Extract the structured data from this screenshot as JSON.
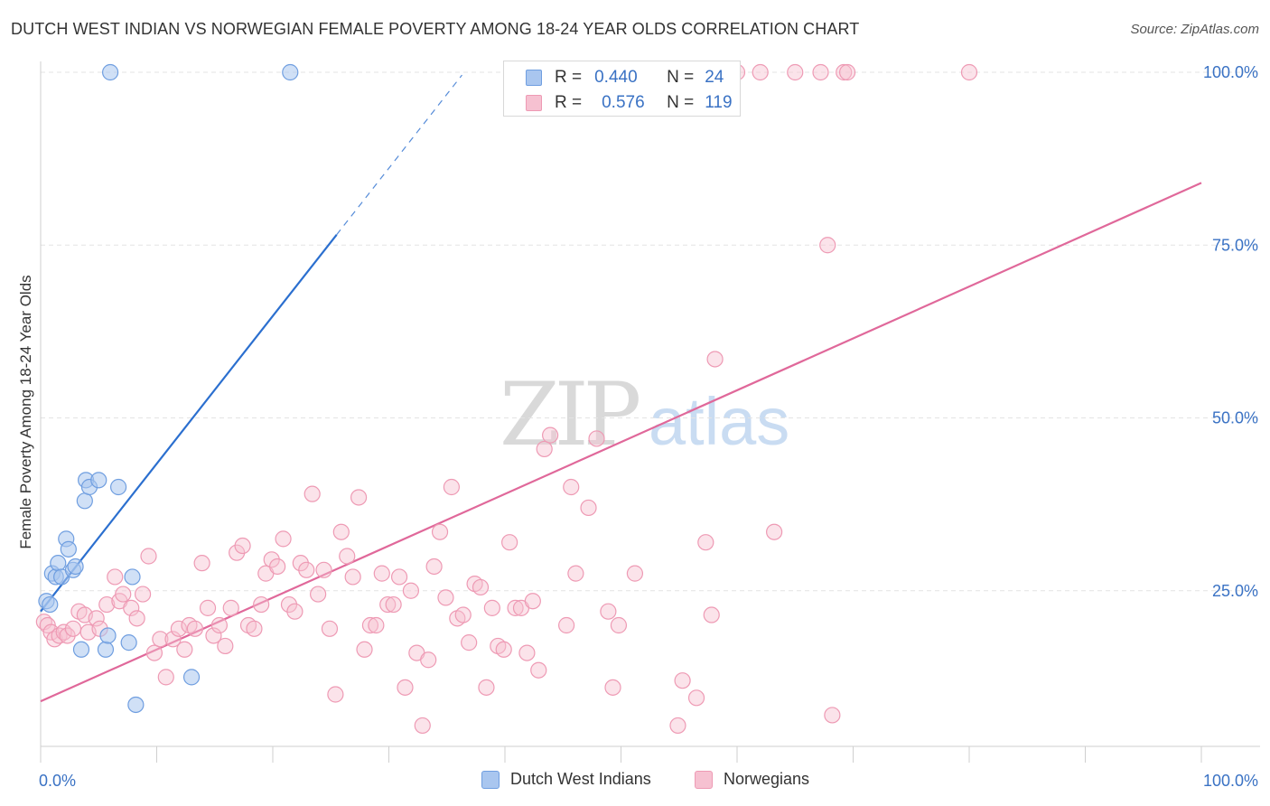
{
  "title": "DUTCH WEST INDIAN VS NORWEGIAN FEMALE POVERTY AMONG 18-24 YEAR OLDS CORRELATION CHART",
  "source": "Source: ZipAtlas.com",
  "watermark": {
    "zip": "ZIP",
    "atlas": "atlas"
  },
  "legend": {
    "series": [
      {
        "r_label": "R =",
        "r_value": "0.440",
        "n_label": "N =",
        "n_value": "24"
      },
      {
        "r_label": "R =",
        "r_value": "0.576",
        "n_label": "N =",
        "n_value": "119"
      }
    ]
  },
  "bottom_legend": {
    "dutch": "Dutch West Indians",
    "norwegian": "Norwegians"
  },
  "colors": {
    "dutch_fill": "#a9c6ef",
    "dutch_stroke": "#6f9ee0",
    "dutch_line": "#2b6fcf",
    "norwegian_fill": "#f6c1d1",
    "norwegian_stroke": "#ee9ab4",
    "norwegian_line": "#e0689a",
    "tick_label": "#3a72c4",
    "grid": "#e3e3e3"
  },
  "chart_data": {
    "type": "scatter",
    "title": "DUTCH WEST INDIAN VS NORWEGIAN FEMALE POVERTY AMONG 18-24 YEAR OLDS CORRELATION CHART",
    "xlabel": "",
    "ylabel": "Female Poverty Among 18-24 Year Olds",
    "xlim": [
      0,
      100
    ],
    "ylim": [
      0,
      100
    ],
    "x_tick_labels": [
      "0.0%",
      "100.0%"
    ],
    "y_tick_labels": [
      "25.0%",
      "50.0%",
      "75.0%",
      "100.0%"
    ],
    "y_ticks": [
      25,
      50,
      75,
      100
    ],
    "grid": true,
    "legend_position": "bottom",
    "series": [
      {
        "name": "Dutch West Indians",
        "r": 0.44,
        "n": 24,
        "trend": {
          "x0": 0,
          "y0": 22.0,
          "x1": 25.5,
          "y1": 76.5,
          "dash_x1": 36.3,
          "dash_y1": 99.6
        },
        "points": [
          [
            0.5,
            23.5
          ],
          [
            0.8,
            23.0
          ],
          [
            1.0,
            27.5
          ],
          [
            1.3,
            27.0
          ],
          [
            1.5,
            29.0
          ],
          [
            1.8,
            27.0
          ],
          [
            2.2,
            32.5
          ],
          [
            2.4,
            31.0
          ],
          [
            2.8,
            28.0
          ],
          [
            3.0,
            28.5
          ],
          [
            3.5,
            16.5
          ],
          [
            3.8,
            38.0
          ],
          [
            3.9,
            41.0
          ],
          [
            4.2,
            40.0
          ],
          [
            5.0,
            41.0
          ],
          [
            5.6,
            16.5
          ],
          [
            5.8,
            18.5
          ],
          [
            6.0,
            100.0
          ],
          [
            6.7,
            40.0
          ],
          [
            7.6,
            17.5
          ],
          [
            7.9,
            27.0
          ],
          [
            8.2,
            8.5
          ],
          [
            13.0,
            12.5
          ],
          [
            21.5,
            100.0
          ]
        ]
      },
      {
        "name": "Norwegians",
        "r": 0.576,
        "n": 119,
        "trend": {
          "x0": 0,
          "y0": 9.0,
          "x1": 100,
          "y1": 84.0
        },
        "points": [
          [
            0.3,
            20.5
          ],
          [
            0.6,
            20.0
          ],
          [
            0.9,
            19.0
          ],
          [
            1.2,
            18.0
          ],
          [
            1.6,
            18.5
          ],
          [
            2.0,
            19.0
          ],
          [
            2.3,
            18.5
          ],
          [
            2.8,
            19.5
          ],
          [
            3.3,
            22.0
          ],
          [
            3.8,
            21.5
          ],
          [
            4.1,
            19.0
          ],
          [
            4.8,
            21.0
          ],
          [
            5.1,
            19.5
          ],
          [
            5.7,
            23.0
          ],
          [
            6.4,
            27.0
          ],
          [
            6.8,
            23.5
          ],
          [
            7.1,
            24.5
          ],
          [
            7.8,
            22.5
          ],
          [
            8.3,
            21.0
          ],
          [
            8.8,
            24.5
          ],
          [
            9.3,
            30.0
          ],
          [
            9.8,
            16.0
          ],
          [
            10.3,
            18.0
          ],
          [
            10.8,
            12.5
          ],
          [
            11.4,
            18.0
          ],
          [
            11.9,
            19.5
          ],
          [
            12.4,
            16.5
          ],
          [
            12.8,
            20.0
          ],
          [
            13.3,
            19.5
          ],
          [
            13.9,
            29.0
          ],
          [
            14.4,
            22.5
          ],
          [
            14.9,
            18.5
          ],
          [
            15.4,
            20.0
          ],
          [
            15.9,
            17.0
          ],
          [
            16.4,
            22.5
          ],
          [
            16.9,
            30.5
          ],
          [
            17.4,
            31.5
          ],
          [
            17.9,
            20.0
          ],
          [
            18.4,
            19.5
          ],
          [
            19.0,
            23.0
          ],
          [
            19.4,
            27.5
          ],
          [
            19.9,
            29.5
          ],
          [
            20.4,
            28.5
          ],
          [
            20.9,
            32.5
          ],
          [
            21.4,
            23.0
          ],
          [
            21.9,
            22.0
          ],
          [
            22.4,
            29.0
          ],
          [
            22.9,
            28.0
          ],
          [
            23.4,
            39.0
          ],
          [
            23.9,
            24.5
          ],
          [
            24.4,
            28.0
          ],
          [
            24.9,
            19.5
          ],
          [
            25.4,
            10.0
          ],
          [
            25.9,
            33.5
          ],
          [
            26.4,
            30.0
          ],
          [
            26.9,
            27.0
          ],
          [
            27.4,
            38.5
          ],
          [
            27.9,
            16.5
          ],
          [
            28.4,
            20.0
          ],
          [
            28.9,
            20.0
          ],
          [
            29.4,
            27.5
          ],
          [
            29.9,
            23.0
          ],
          [
            30.4,
            23.0
          ],
          [
            30.9,
            27.0
          ],
          [
            31.4,
            11.0
          ],
          [
            31.9,
            25.0
          ],
          [
            32.4,
            16.0
          ],
          [
            32.9,
            5.5
          ],
          [
            33.4,
            15.0
          ],
          [
            33.9,
            28.5
          ],
          [
            34.4,
            33.5
          ],
          [
            34.9,
            24.0
          ],
          [
            35.4,
            40.0
          ],
          [
            35.9,
            21.0
          ],
          [
            36.4,
            21.5
          ],
          [
            36.9,
            17.5
          ],
          [
            37.4,
            26.0
          ],
          [
            37.9,
            25.5
          ],
          [
            38.4,
            11.0
          ],
          [
            38.9,
            22.5
          ],
          [
            39.4,
            17.0
          ],
          [
            39.9,
            16.5
          ],
          [
            40.4,
            32.0
          ],
          [
            40.9,
            22.5
          ],
          [
            41.4,
            22.5
          ],
          [
            41.9,
            16.0
          ],
          [
            42.4,
            23.5
          ],
          [
            42.9,
            13.5
          ],
          [
            43.4,
            45.5
          ],
          [
            43.9,
            47.5
          ],
          [
            44.4,
            100.0
          ],
          [
            45.3,
            20.0
          ],
          [
            45.7,
            40.0
          ],
          [
            46.1,
            27.5
          ],
          [
            47.2,
            37.0
          ],
          [
            47.9,
            47.0
          ],
          [
            48.3,
            100.0
          ],
          [
            48.9,
            22.0
          ],
          [
            49.3,
            11.0
          ],
          [
            49.8,
            20.0
          ],
          [
            51.2,
            27.5
          ],
          [
            54.5,
            100.0
          ],
          [
            54.9,
            5.5
          ],
          [
            55.3,
            12.0
          ],
          [
            55.8,
            100.0
          ],
          [
            56.5,
            9.5
          ],
          [
            57.3,
            32.0
          ],
          [
            57.8,
            21.5
          ],
          [
            58.1,
            58.5
          ],
          [
            60.0,
            100.0
          ],
          [
            62.0,
            100.0
          ],
          [
            63.2,
            33.5
          ],
          [
            65.0,
            100.0
          ],
          [
            67.2,
            100.0
          ],
          [
            67.8,
            75.0
          ],
          [
            68.2,
            7.0
          ],
          [
            69.2,
            100.0
          ],
          [
            69.5,
            100.0
          ],
          [
            80.0,
            100.0
          ]
        ]
      }
    ]
  }
}
